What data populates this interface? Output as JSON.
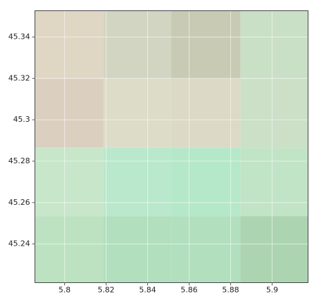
{
  "chart_data": {
    "type": "heatmap",
    "x_edges": [
      5.7857,
      5.8187,
      5.8513,
      5.8847,
      5.9173
    ],
    "y_edges": [
      45.3527,
      45.3198,
      45.2866,
      45.2535,
      45.2213
    ],
    "colors": [
      [
        "#dfd6c4",
        "#d2d5c1",
        "#c9cab4",
        "#cae0c6"
      ],
      [
        "#dbcfc0",
        "#dddcc9",
        "#dcdac6",
        "#cbe0c7"
      ],
      [
        "#c8e6ca",
        "#b9e8cc",
        "#b5e8c8",
        "#c2e4c6"
      ],
      [
        "#bde2c1",
        "#b2dfbe",
        "#b2dfbe",
        "#acd4b1"
      ]
    ],
    "xlim": [
      5.7857,
      5.9173
    ],
    "ylim": [
      45.2213,
      45.3527
    ],
    "xticks": [
      5.8,
      5.82,
      5.84,
      5.86,
      5.88,
      5.9
    ],
    "yticks": [
      45.24,
      45.26,
      45.28,
      45.3,
      45.32,
      45.34
    ],
    "grid": true
  }
}
